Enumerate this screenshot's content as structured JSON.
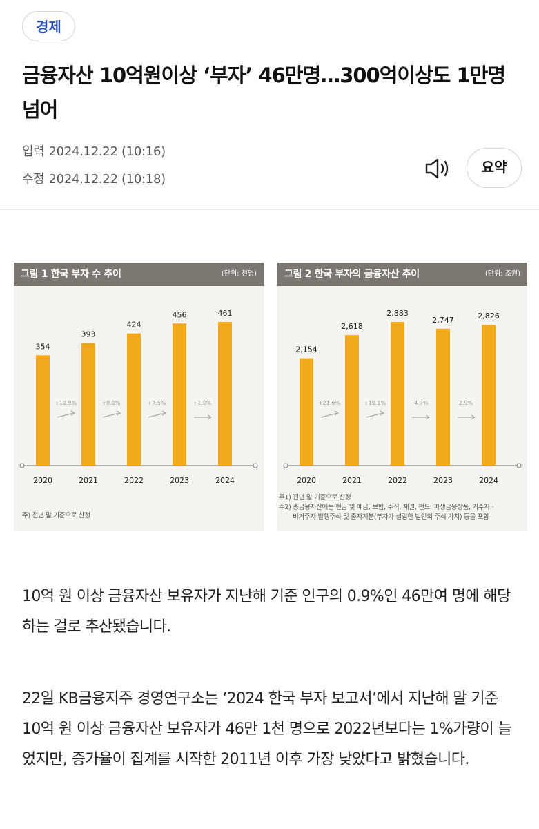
{
  "category": "경제",
  "headline": "금융자산 10억원이상 ‘부자’ 46만명…300억이상도 1만명 넘어",
  "meta": {
    "input_label": "입력",
    "input_time": "2024.12.22 (10:16)",
    "edit_label": "수정",
    "edit_time": "2024.12.22 (10:18)"
  },
  "toolbar": {
    "listen_icon": "speaker-icon",
    "summary_label": "요약"
  },
  "colors": {
    "accent": "#2d52b8",
    "bar": "#f2a81d",
    "header": "#7b7670"
  },
  "chart_data": [
    {
      "type": "bar",
      "title": "그림 1  한국 부자 수 추이",
      "unit": "(단위: 천명)",
      "categories": [
        "2020",
        "2021",
        "2022",
        "2023",
        "2024"
      ],
      "values": [
        354,
        393,
        424,
        456,
        461
      ],
      "value_labels": [
        "354",
        "393",
        "424",
        "456",
        "461"
      ],
      "growth_labels": [
        "+10.9%",
        "+8.0%",
        "+7.5%",
        "+1.0%"
      ],
      "notes": [
        "주) 전년 말 기준으로 산정"
      ]
    },
    {
      "type": "bar",
      "title": "그림 2  한국 부자의 금융자산 추이",
      "unit": "(단위: 조원)",
      "categories": [
        "2020",
        "2021",
        "2022",
        "2023",
        "2024"
      ],
      "values": [
        2154,
        2618,
        2883,
        2747,
        2826
      ],
      "value_labels": [
        "2,154",
        "2,618",
        "2,883",
        "2,747",
        "2,826"
      ],
      "growth_labels": [
        "+21.6%",
        "+10.1%",
        "-4.7%",
        "2.9%"
      ],
      "notes": [
        "주1) 전년 말 기준으로 산정",
        "주2) 총금융자산에는 현금 및 예금, 보험, 주식, 채권, 펀드, 파생금융상품, 거주자 ·",
        "비거주자 발행주식 및 출자지분(부자가 설립한 법인의 주식 가치) 등을 포함"
      ]
    }
  ],
  "article": {
    "paragraphs": [
      "10억 원 이상 금융자산 보유자가 지난해 기준 인구의 0.9%인 46만여 명에 해당하는 걸로 추산됐습니다.",
      "22일 KB금융지주 경영연구소는 ‘2024 한국 부자 보고서’에서 지난해 말 기준 10억 원 이상 금융자산 보유자가 46만 1천 명으로 2022년보다는 1%가량이 늘었지만, 증가율이 집계를 시작한 2011년 이후 가장 낮았다고 밝혔습니다."
    ]
  }
}
